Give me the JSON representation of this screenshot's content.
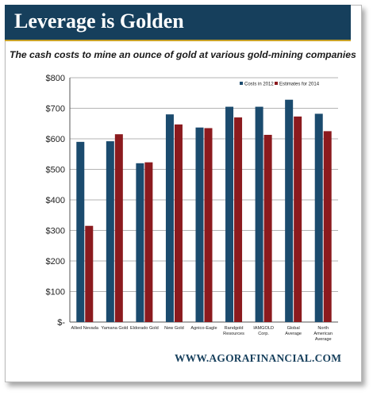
{
  "banner": {
    "title": "Leverage is Golden"
  },
  "footer": {
    "website": "WWW.AGORAFINANCIAL.COM"
  },
  "colors": {
    "banner": "#163f5c",
    "series_2012": "#1b4b6e",
    "series_2014": "#8b1a1e"
  },
  "chart_data": {
    "type": "bar",
    "title": "The cash costs to mine an ounce of gold at various gold-mining companies",
    "categories": [
      [
        "Allied Nevada"
      ],
      [
        "Yamana Gold"
      ],
      [
        "Eldorado Gold"
      ],
      [
        "New Gold"
      ],
      [
        "Agnico-Eagle"
      ],
      [
        "Randgold",
        "Resources"
      ],
      [
        "IAMGOLD",
        "Corp."
      ],
      [
        "Global",
        "Average"
      ],
      [
        "North",
        "American",
        "Average"
      ]
    ],
    "series": [
      {
        "name": "Costs in 2012",
        "values": [
          590,
          592,
          520,
          680,
          637,
          705,
          705,
          728,
          682
        ]
      },
      {
        "name": "Estimates for 2014",
        "values": [
          315,
          615,
          523,
          647,
          635,
          670,
          613,
          673,
          625
        ]
      }
    ],
    "ylim": [
      0,
      800
    ],
    "yticks": [
      0,
      100,
      200,
      300,
      400,
      500,
      600,
      700,
      800
    ],
    "ytick_labels": [
      "$-",
      "$100",
      "$200",
      "$300",
      "$400",
      "$500",
      "$600",
      "$700",
      "$800"
    ],
    "xlabel": "",
    "ylabel": "",
    "grid": true,
    "legend": "top-right"
  }
}
